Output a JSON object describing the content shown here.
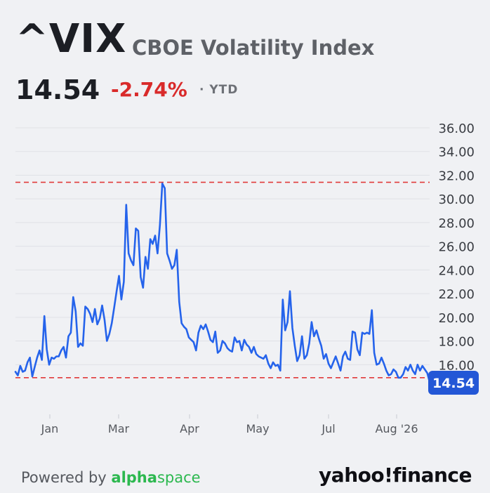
{
  "header": {
    "ticker": "^VIX",
    "name": "CBOE Volatility Index",
    "price": "14.54",
    "change": "-2.74%",
    "period": "· YTD"
  },
  "footer": {
    "powered_by": "Powered by",
    "brand_alpha": "alpha",
    "brand_space": "space",
    "source": "yahoo!finance"
  },
  "colors": {
    "line": "#2563eb",
    "reference": "#e03a3a",
    "badge": "#2357d6",
    "negative": "#d92a2a"
  },
  "chart_data": {
    "type": "line",
    "title": "",
    "xlabel": "",
    "ylabel": "",
    "ylim": [
      14,
      36
    ],
    "yticks": [
      "16.00",
      "18.00",
      "20.00",
      "22.00",
      "24.00",
      "26.00",
      "28.00",
      "30.00",
      "32.00",
      "34.00",
      "36.00"
    ],
    "xticks": [
      "Jan",
      "Mar",
      "Apr",
      "May",
      "Jul",
      "Aug '26"
    ],
    "grid": true,
    "last_value_label": "14.54",
    "reference_lines": [
      31.4,
      14.9
    ],
    "series": [
      {
        "values": [
          15.4,
          15.1,
          15.9,
          15.4,
          15.5,
          16.2,
          16.6,
          15.0,
          15.8,
          16.6,
          17.2,
          16.4,
          20.1,
          17.3,
          16.0,
          16.6,
          16.5,
          16.7,
          16.7,
          17.2,
          17.5,
          16.6,
          18.4,
          18.7,
          21.7,
          20.5,
          17.5,
          17.8,
          17.6,
          20.9,
          20.7,
          20.3,
          19.6,
          20.7,
          19.4,
          19.9,
          21.0,
          19.8,
          18.0,
          18.6,
          19.5,
          20.8,
          22.2,
          23.5,
          21.5,
          23.0,
          29.5,
          25.4,
          24.8,
          24.4,
          27.5,
          27.3,
          23.4,
          22.5,
          25.1,
          24.1,
          26.6,
          26.2,
          26.9,
          25.4,
          27.8,
          31.3,
          30.9,
          25.4,
          24.8,
          24.1,
          24.4,
          25.7,
          21.3,
          19.5,
          19.2,
          19.0,
          18.3,
          18.1,
          17.9,
          17.2,
          18.7,
          19.3,
          19.0,
          19.4,
          18.8,
          18.1,
          17.9,
          18.8,
          17.0,
          17.2,
          18.0,
          17.8,
          17.4,
          17.2,
          17.1,
          18.3,
          17.9,
          18.0,
          17.2,
          18.1,
          17.7,
          17.5,
          17.0,
          17.5,
          16.9,
          16.7,
          16.6,
          16.5,
          16.8,
          16.1,
          15.7,
          16.2,
          15.9,
          16.0,
          15.5,
          21.5,
          18.9,
          19.6,
          22.2,
          19.1,
          17.6,
          16.3,
          16.8,
          18.4,
          16.5,
          16.8,
          17.8,
          19.6,
          18.4,
          18.9,
          18.2,
          17.6,
          16.5,
          16.9,
          16.1,
          15.7,
          16.2,
          16.7,
          16.1,
          15.5,
          16.7,
          17.1,
          16.5,
          16.4,
          18.8,
          18.7,
          17.3,
          16.8,
          18.7,
          18.6,
          18.7,
          18.6,
          20.6,
          17.0,
          16.0,
          16.1,
          16.6,
          16.1,
          15.5,
          15.1,
          15.2,
          15.6,
          15.4,
          14.9,
          14.9,
          15.2,
          15.8,
          15.5,
          16.0,
          15.5,
          15.2,
          16.0,
          15.5,
          15.9,
          15.6,
          15.3,
          14.54
        ]
      }
    ]
  }
}
